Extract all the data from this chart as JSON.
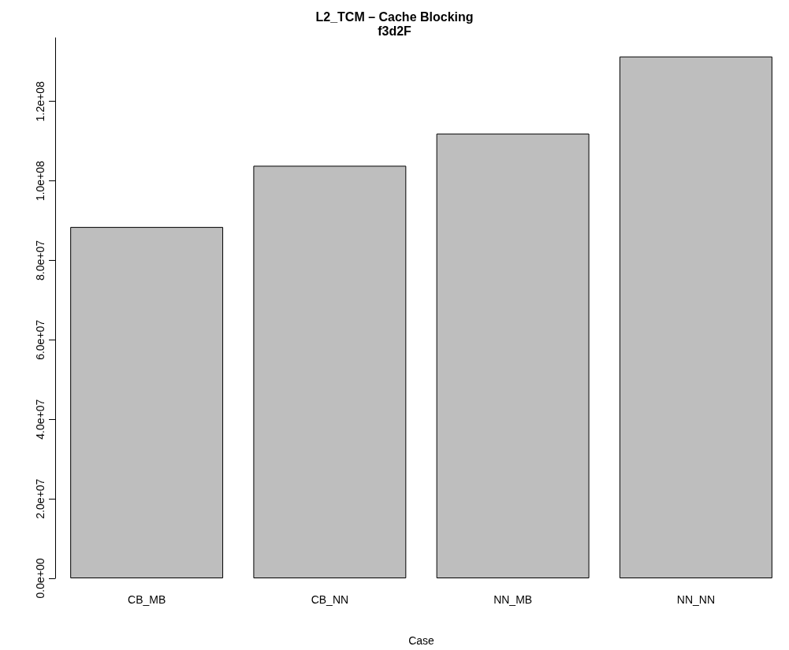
{
  "chart_data": {
    "type": "bar",
    "title": "L2_TCM – Cache Blocking",
    "subtitle": "f3d2F",
    "xlabel": "Case",
    "categories": [
      "CB_MB",
      "CB_NN",
      "NN_MB",
      "NN_NN"
    ],
    "values": [
      88400000,
      103800000,
      111900000,
      131300000
    ],
    "color": "#bebebe",
    "ylim": [
      0,
      136000000
    ],
    "yticks": [
      {
        "value": 0,
        "label": "0.0e+00"
      },
      {
        "value": 20000000,
        "label": "2.0e+07"
      },
      {
        "value": 40000000,
        "label": "4.0e+07"
      },
      {
        "value": 60000000,
        "label": "6.0e+07"
      },
      {
        "value": 80000000,
        "label": "8.0e+07"
      },
      {
        "value": 100000000,
        "label": "1.0e+08"
      },
      {
        "value": 120000000,
        "label": "1.2e+08"
      }
    ],
    "grid": false
  }
}
